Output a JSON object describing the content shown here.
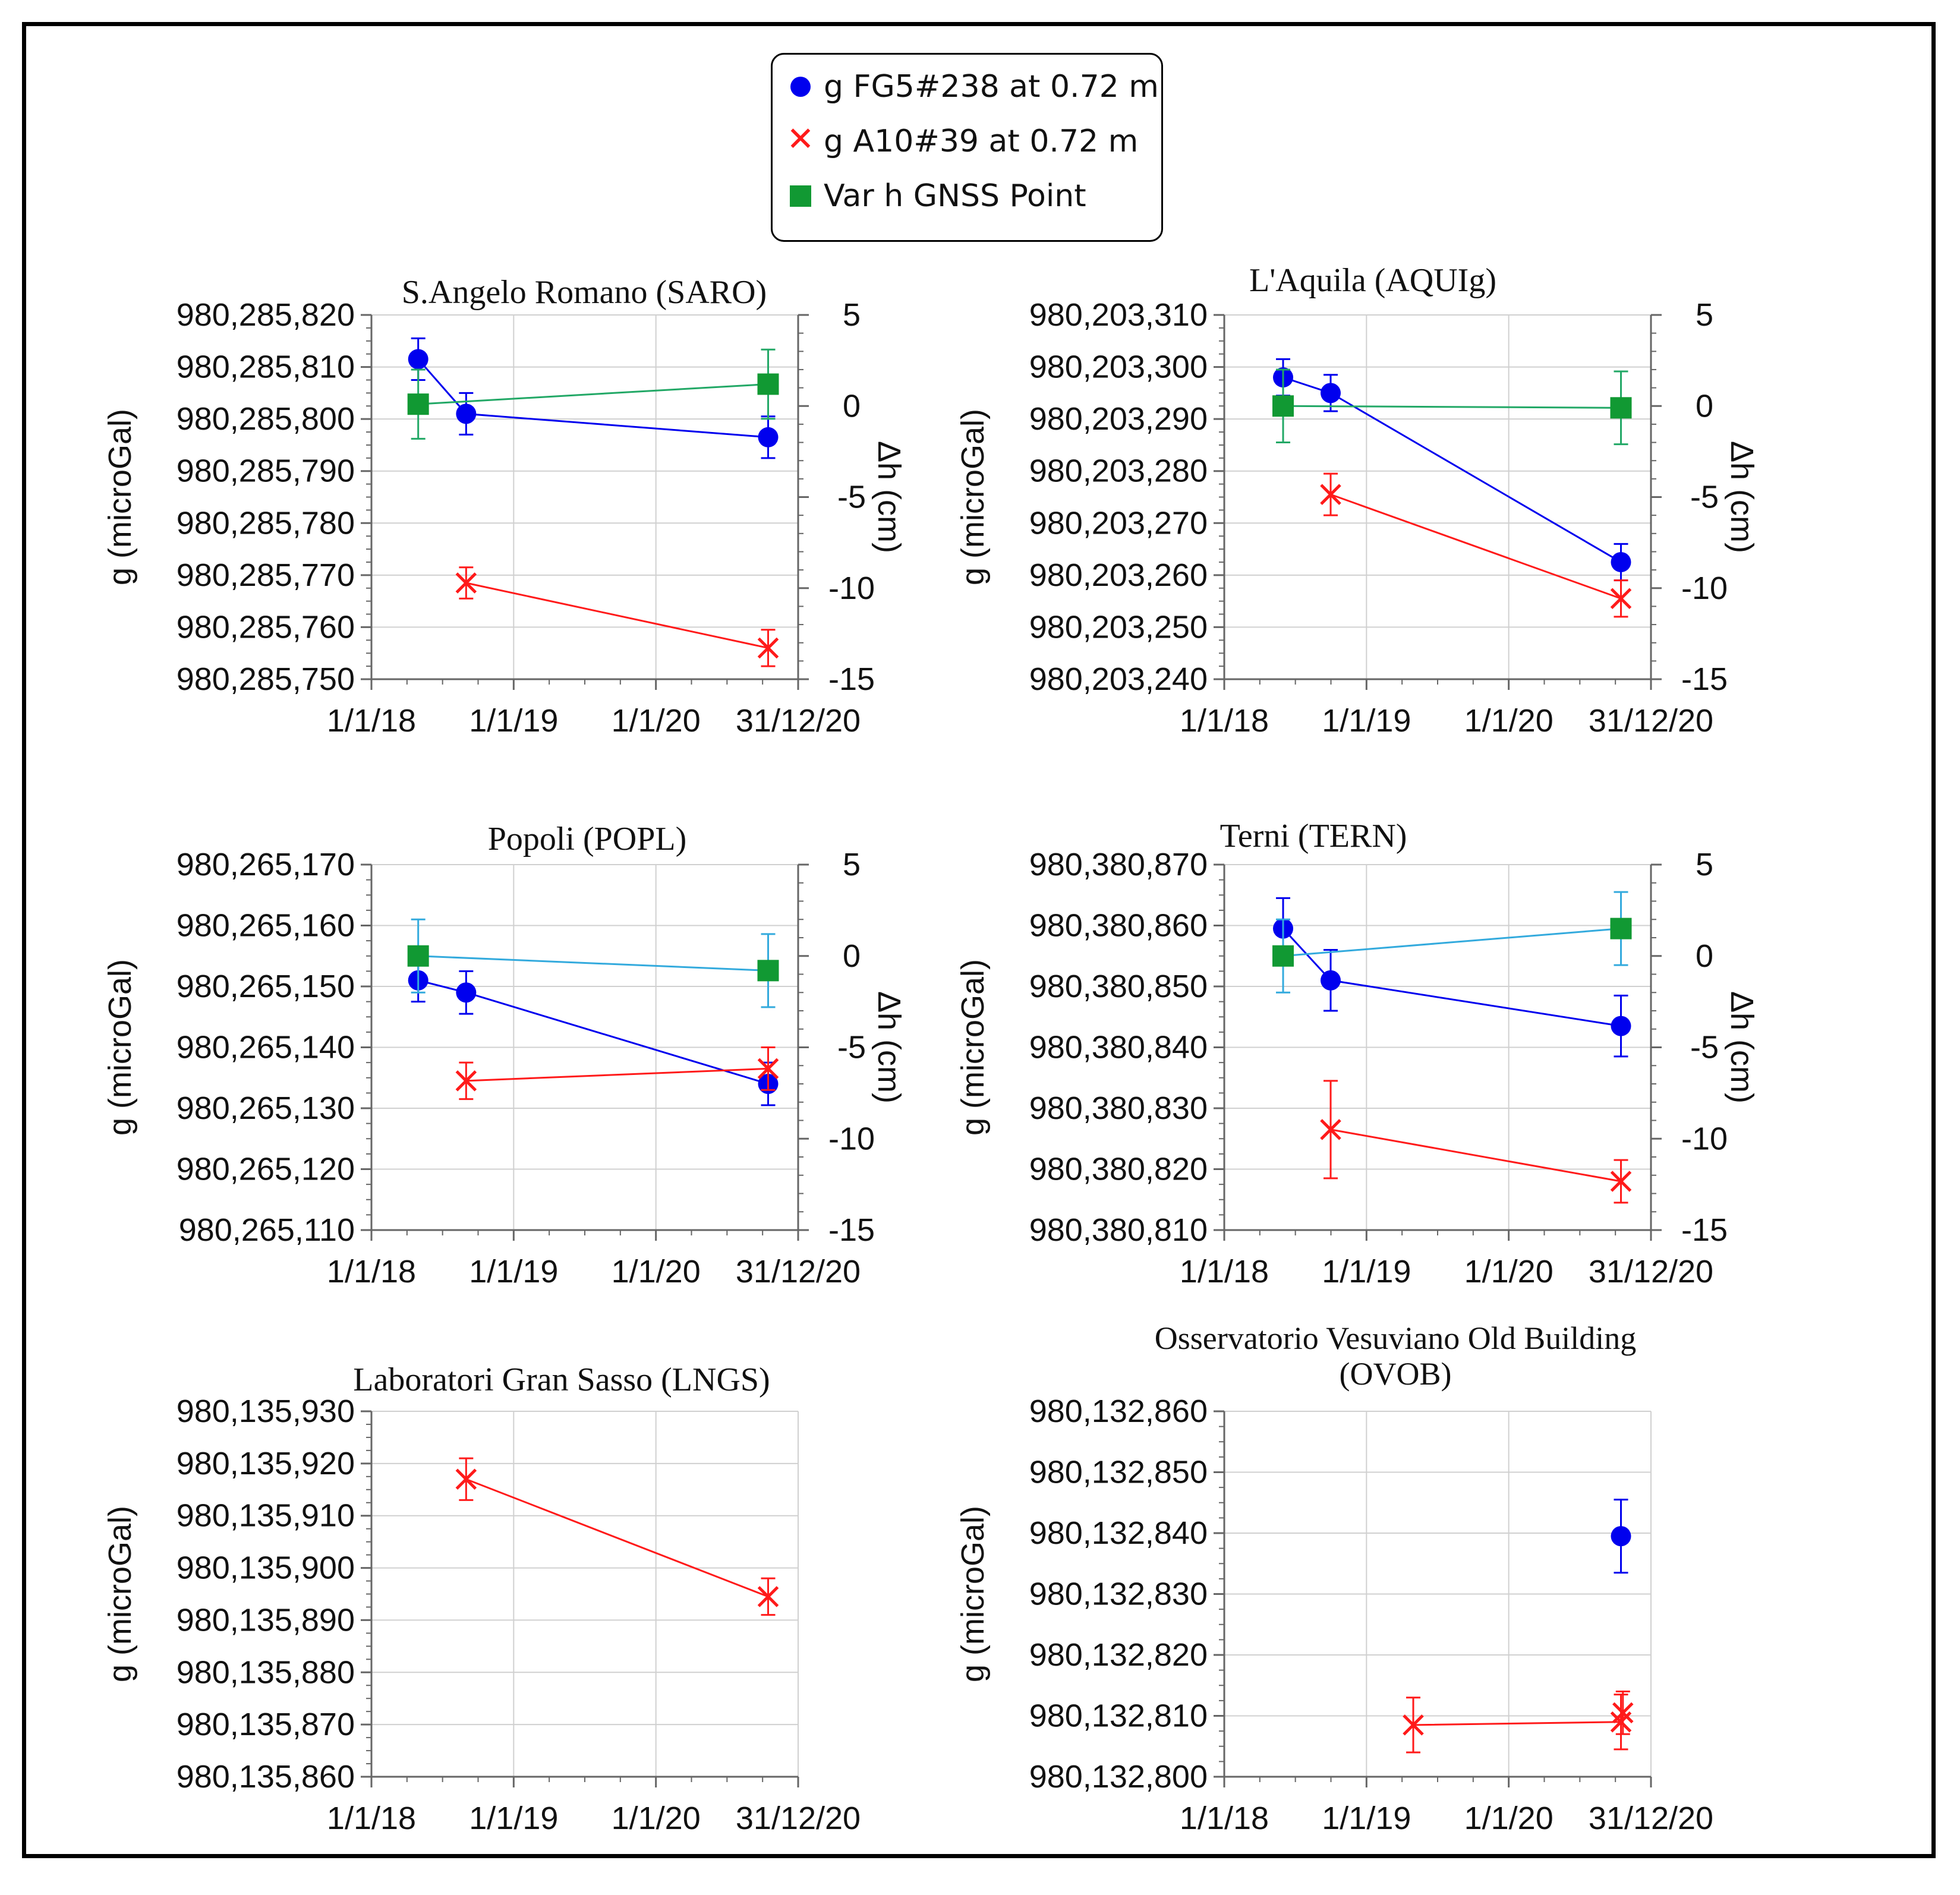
{
  "legend": {
    "items": [
      {
        "label": "g FG5#238 at 0.72 m",
        "marker": "circle",
        "color": "#0000ee"
      },
      {
        "label": "g A10#39 at 0.72 m",
        "marker": "x",
        "color": "#ff1a1a"
      },
      {
        "label": "Var h GNSS Point",
        "marker": "square",
        "color": "#119933"
      }
    ]
  },
  "colors": {
    "fg5": "#0000ee",
    "a10": "#ff1a1a",
    "gnss_marker": "#119933",
    "gnss_line_saro": "#22a866",
    "gnss_line": "#33aadd",
    "grid": "#d0d0d0"
  },
  "chart_data": [
    {
      "type": "scatter",
      "title": "S.Angelo Romano (SARO)",
      "ylabel": "g (microGal)",
      "y2label": "Δh (cm)",
      "ylim": [
        980285750,
        980285820
      ],
      "yticks": [
        "980,285,750",
        "980,285,760",
        "980,285,770",
        "980,285,780",
        "980,285,790",
        "980,285,800",
        "980,285,810",
        "980,285,820"
      ],
      "y2lim": [
        -15,
        5
      ],
      "y2ticks": [
        "-15",
        "-10",
        "-5",
        "0",
        "5"
      ],
      "xlim": [
        "2018-01-01",
        "2020-12-31"
      ],
      "xticks": [
        "1/1/18",
        "1/1/19",
        "1/1/20",
        "31/12/20"
      ],
      "gnss_line": "gnss_line_saro",
      "series": [
        {
          "name": "g FG5#238 at 0.72 m",
          "points": [
            {
              "x": "2018-05-01",
              "y": 980285811.5,
              "err": 4
            },
            {
              "x": "2018-09-01",
              "y": 980285801,
              "err": 4
            },
            {
              "x": "2020-10-15",
              "y": 980285796.5,
              "err": 4
            }
          ]
        },
        {
          "name": "g A10#39 at 0.72 m",
          "points": [
            {
              "x": "2018-09-01",
              "y": 980285768.5,
              "err": 3
            },
            {
              "x": "2020-10-15",
              "y": 980285756,
              "err": 3.5
            }
          ]
        },
        {
          "name": "Var h GNSS Point",
          "axis": "y2",
          "points": [
            {
              "x": "2018-05-01",
              "y": 0.1,
              "err": 1.9
            },
            {
              "x": "2020-10-15",
              "y": 1.2,
              "err": 1.9
            }
          ]
        }
      ]
    },
    {
      "type": "scatter",
      "title": "L'Aquila (AQUIg)",
      "ylabel": "g (microGal)",
      "y2label": "Δh (cm)",
      "ylim": [
        980203240,
        980203310
      ],
      "yticks": [
        "980,203,240",
        "980,203,250",
        "980,203,260",
        "980,203,270",
        "980,203,280",
        "980,203,290",
        "980,203,300",
        "980,203,310"
      ],
      "y2lim": [
        -15,
        5
      ],
      "y2ticks": [
        "-15",
        "-10",
        "-5",
        "0",
        "5"
      ],
      "xlim": [
        "2018-01-01",
        "2020-12-31"
      ],
      "xticks": [
        "1/1/18",
        "1/1/19",
        "1/1/20",
        "31/12/20"
      ],
      "gnss_line": "gnss_line_saro",
      "series": [
        {
          "name": "g FG5#238 at 0.72 m",
          "points": [
            {
              "x": "2018-06-01",
              "y": 980203298,
              "err": 3.5
            },
            {
              "x": "2018-10-01",
              "y": 980203295,
              "err": 3.5
            },
            {
              "x": "2020-10-15",
              "y": 980203262.5,
              "err": 3.5
            }
          ]
        },
        {
          "name": "g A10#39 at 0.72 m",
          "points": [
            {
              "x": "2018-10-01",
              "y": 980203275.5,
              "err": 4
            },
            {
              "x": "2020-10-15",
              "y": 980203255.5,
              "err": 3.5
            }
          ]
        },
        {
          "name": "Var h GNSS Point",
          "axis": "y2",
          "points": [
            {
              "x": "2018-06-01",
              "y": 0,
              "err": 2
            },
            {
              "x": "2020-10-15",
              "y": -0.1,
              "err": 2
            }
          ]
        }
      ]
    },
    {
      "type": "scatter",
      "title": "Popoli (POPL)",
      "ylabel": "g (microGal)",
      "y2label": "Δh (cm)",
      "ylim": [
        980265110,
        980265170
      ],
      "yticks": [
        "980,265,110",
        "980,265,120",
        "980,265,130",
        "980,265,140",
        "980,265,150",
        "980,265,160",
        "980,265,170"
      ],
      "y2lim": [
        -15,
        5
      ],
      "y2ticks": [
        "-15",
        "-10",
        "-5",
        "0",
        "5"
      ],
      "xlim": [
        "2018-01-01",
        "2020-12-31"
      ],
      "xticks": [
        "1/1/18",
        "1/1/19",
        "1/1/20",
        "31/12/20"
      ],
      "gnss_line": "gnss_line",
      "series": [
        {
          "name": "g FG5#238 at 0.72 m",
          "points": [
            {
              "x": "2018-05-01",
              "y": 980265151,
              "err": 3.5
            },
            {
              "x": "2018-09-01",
              "y": 980265149,
              "err": 3.5
            },
            {
              "x": "2020-10-15",
              "y": 980265134,
              "err": 3.5
            }
          ]
        },
        {
          "name": "g A10#39 at 0.72 m",
          "points": [
            {
              "x": "2018-09-01",
              "y": 980265134.5,
              "err": 3
            },
            {
              "x": "2020-10-15",
              "y": 980265136.5,
              "err": 3.5
            }
          ]
        },
        {
          "name": "Var h GNSS Point",
          "axis": "y2",
          "points": [
            {
              "x": "2018-05-01",
              "y": 0,
              "err": 2
            },
            {
              "x": "2020-10-15",
              "y": -0.8,
              "err": 2
            }
          ]
        }
      ]
    },
    {
      "type": "scatter",
      "title": "Terni (TERN)",
      "ylabel": "g (microGal)",
      "y2label": "Δh (cm)",
      "ylim": [
        980380810,
        980380870
      ],
      "yticks": [
        "980,380,810",
        "980,380,820",
        "980,380,830",
        "980,380,840",
        "980,380,850",
        "980,380,860",
        "980,380,870"
      ],
      "y2lim": [
        -15,
        5
      ],
      "y2ticks": [
        "-15",
        "-10",
        "-5",
        "0",
        "5"
      ],
      "xlim": [
        "2018-01-01",
        "2020-12-31"
      ],
      "xticks": [
        "1/1/18",
        "1/1/19",
        "1/1/20",
        "31/12/20"
      ],
      "gnss_line": "gnss_line",
      "series": [
        {
          "name": "g FG5#238 at 0.72 m",
          "points": [
            {
              "x": "2018-06-01",
              "y": 980380859.5,
              "err": 5
            },
            {
              "x": "2018-10-01",
              "y": 980380851,
              "err": 5
            },
            {
              "x": "2020-10-15",
              "y": 980380843.5,
              "err": 5
            }
          ]
        },
        {
          "name": "g A10#39 at 0.72 m",
          "points": [
            {
              "x": "2018-10-01",
              "y": 980380826.5,
              "err": 8
            },
            {
              "x": "2020-10-15",
              "y": 980380818,
              "err": 3.5
            }
          ]
        },
        {
          "name": "Var h GNSS Point",
          "axis": "y2",
          "points": [
            {
              "x": "2018-06-01",
              "y": 0,
              "err": 2
            },
            {
              "x": "2020-10-15",
              "y": 1.5,
              "err": 2
            }
          ]
        }
      ]
    },
    {
      "type": "scatter",
      "title": "Laboratori Gran Sasso (LNGS)",
      "ylabel": "g (microGal)",
      "ylim": [
        980135860,
        980135930
      ],
      "yticks": [
        "980,135,860",
        "980,135,870",
        "980,135,880",
        "980,135,890",
        "980,135,900",
        "980,135,910",
        "980,135,920",
        "980,135,930"
      ],
      "xlim": [
        "2018-01-01",
        "2020-12-31"
      ],
      "xticks": [
        "1/1/18",
        "1/1/19",
        "1/1/20",
        "31/12/20"
      ],
      "series": [
        {
          "name": "g A10#39 at 0.72 m",
          "points": [
            {
              "x": "2018-09-01",
              "y": 980135917,
              "err": 4
            },
            {
              "x": "2020-10-15",
              "y": 980135894.5,
              "err": 3.5
            }
          ]
        }
      ]
    },
    {
      "type": "scatter",
      "title": "Osservatorio Vesuviano Old Building (OVOB)",
      "ylabel": "g (microGal)",
      "ylim": [
        980132800,
        980132860
      ],
      "yticks": [
        "980,132,800",
        "980,132,810",
        "980,132,820",
        "980,132,830",
        "980,132,840",
        "980,132,850",
        "980,132,860"
      ],
      "xlim": [
        "2018-01-01",
        "2020-12-31"
      ],
      "xticks": [
        "1/1/18",
        "1/1/19",
        "1/1/20",
        "31/12/20"
      ],
      "series": [
        {
          "name": "g FG5#238 at 0.72 m",
          "points": [
            {
              "x": "2020-10-15",
              "y": 980132839.5,
              "err": 6
            }
          ]
        },
        {
          "name": "g A10#39 at 0.72 m",
          "points": [
            {
              "x": "2019-05-01",
              "y": 980132808.5,
              "err": 4.5
            },
            {
              "x": "2020-10-15",
              "y": 980132809,
              "err": 4.5
            },
            {
              "x": "2020-10-20",
              "y": 980132810.5,
              "err": 3.5
            }
          ]
        }
      ]
    }
  ]
}
